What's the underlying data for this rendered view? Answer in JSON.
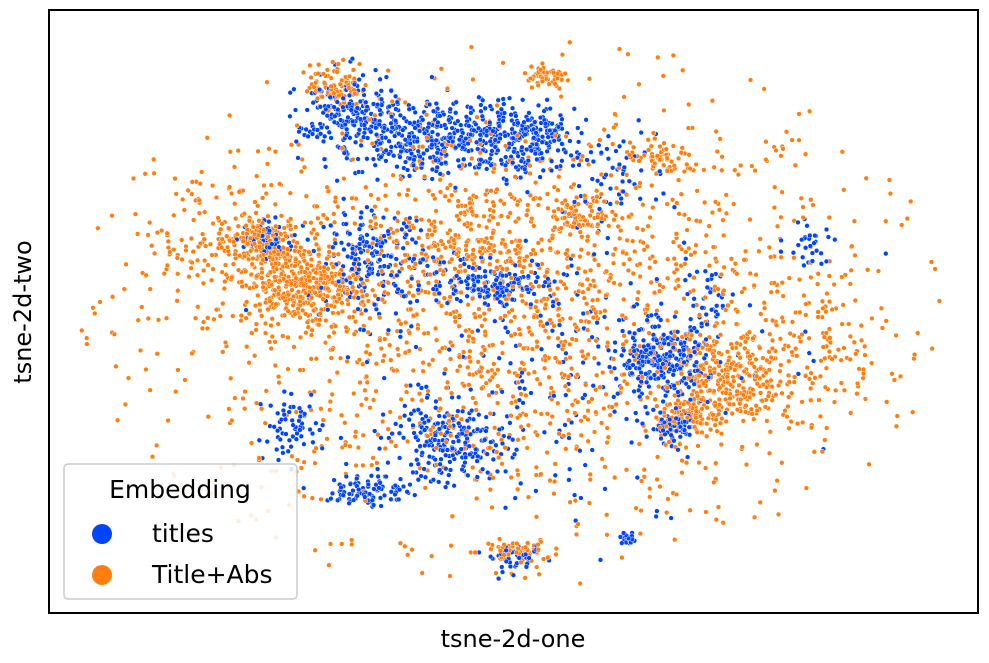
{
  "chart_data": {
    "type": "scatter",
    "title": "",
    "xlabel": "tsne-2d-one",
    "ylabel": "tsne-2d-two",
    "xlim": [
      -100,
      100
    ],
    "ylim": [
      -100,
      100
    ],
    "grid": false,
    "ticks_visible": false,
    "legend": {
      "title": "Embedding",
      "placement": "lower-left",
      "entries": [
        {
          "label": "titles",
          "color": "#0044ff"
        },
        {
          "label": "Title+Abs",
          "color": "#ff7f0e"
        }
      ]
    },
    "series": [
      {
        "name": "titles",
        "color": "#0044ff",
        "clusters": [
          {
            "cx": -39,
            "cy": 70,
            "sx": 6,
            "sy": 8,
            "n": 220
          },
          {
            "cx": -24,
            "cy": 62,
            "sx": 6,
            "sy": 6,
            "n": 160
          },
          {
            "cx": -8,
            "cy": 64,
            "sx": 9,
            "sy": 7,
            "n": 300
          },
          {
            "cx": 5,
            "cy": 63,
            "sx": 5,
            "sy": 5,
            "n": 120
          },
          {
            "cx": -34,
            "cy": 20,
            "sx": 6,
            "sy": 8,
            "n": 170
          },
          {
            "cx": -5,
            "cy": 10,
            "sx": 8,
            "sy": 4,
            "n": 140
          },
          {
            "cx": -57,
            "cy": 26,
            "sx": 3,
            "sy": 3,
            "n": 60
          },
          {
            "cx": 35,
            "cy": -18,
            "sx": 5,
            "sy": 6,
            "n": 260
          },
          {
            "cx": 38,
            "cy": -42,
            "sx": 3,
            "sy": 3,
            "n": 70
          },
          {
            "cx": -15,
            "cy": -48,
            "sx": 7,
            "sy": 7,
            "n": 210
          },
          {
            "cx": -34,
            "cy": -65,
            "sx": 5,
            "sy": 3,
            "n": 90
          },
          {
            "cx": 1,
            "cy": -90,
            "sx": 3,
            "sy": 2,
            "n": 40
          },
          {
            "cx": 27,
            "cy": -83,
            "sx": 1,
            "sy": 1,
            "n": 25
          },
          {
            "cx": -52,
            "cy": -42,
            "sx": 4,
            "sy": 5,
            "n": 60
          },
          {
            "cx": 22,
            "cy": 51,
            "sx": 6,
            "sy": 8,
            "n": 60
          },
          {
            "cx": 45,
            "cy": 5,
            "sx": 4,
            "sy": 6,
            "n": 35
          },
          {
            "cx": 70,
            "cy": 25,
            "sx": 3,
            "sy": 5,
            "n": 30
          },
          {
            "cx": 5,
            "cy": -15,
            "sx": 25,
            "sy": 30,
            "n": 250
          }
        ]
      },
      {
        "name": "Title+Abs",
        "color": "#ff7f0e",
        "clusters": [
          {
            "cx": 0,
            "cy": 0,
            "sx": 42,
            "sy": 40,
            "n": 1800
          },
          {
            "cx": -50,
            "cy": 10,
            "sx": 7,
            "sy": 7,
            "n": 380
          },
          {
            "cx": -60,
            "cy": 25,
            "sx": 5,
            "sy": 5,
            "n": 150
          },
          {
            "cx": -42,
            "cy": 82,
            "sx": 3,
            "sy": 4,
            "n": 90
          },
          {
            "cx": 17,
            "cy": 35,
            "sx": 4,
            "sy": 3,
            "n": 70
          },
          {
            "cx": 50,
            "cy": -25,
            "sx": 6,
            "sy": 8,
            "n": 230
          },
          {
            "cx": 42,
            "cy": -38,
            "sx": 4,
            "sy": 4,
            "n": 90
          },
          {
            "cx": 35,
            "cy": 55,
            "sx": 5,
            "sy": 3,
            "n": 60
          },
          {
            "cx": 8,
            "cy": 85,
            "sx": 3,
            "sy": 2,
            "n": 50
          },
          {
            "cx": 1,
            "cy": -87,
            "sx": 4,
            "sy": 2,
            "n": 60
          },
          {
            "cx": -10,
            "cy": 25,
            "sx": 10,
            "sy": 6,
            "n": 120
          },
          {
            "cx": -70,
            "cy": 25,
            "sx": 12,
            "sy": 12,
            "n": 130
          },
          {
            "cx": 70,
            "cy": -15,
            "sx": 10,
            "sy": 15,
            "n": 120
          }
        ]
      }
    ]
  }
}
